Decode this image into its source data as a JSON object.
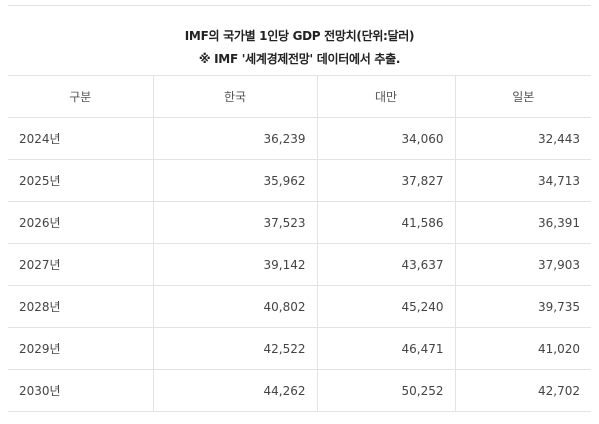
{
  "caption": {
    "title": "IMF의 국가별 1인당 GDP 전망치(단위:달러)",
    "source": "※ IMF '세계경제전망' 데이터에서 추출."
  },
  "table": {
    "headers": [
      "구분",
      "한국",
      "대만",
      "일본"
    ],
    "rows": [
      [
        "2024년",
        "36,239",
        "34,060",
        "32,443"
      ],
      [
        "2025년",
        "35,962",
        "37,827",
        "34,713"
      ],
      [
        "2026년",
        "37,523",
        "41,586",
        "36,391"
      ],
      [
        "2027년",
        "39,142",
        "43,637",
        "37,903"
      ],
      [
        "2028년",
        "40,802",
        "45,240",
        "39,735"
      ],
      [
        "2029년",
        "42,522",
        "46,471",
        "41,020"
      ],
      [
        "2030년",
        "44,262",
        "50,252",
        "42,702"
      ]
    ]
  }
}
